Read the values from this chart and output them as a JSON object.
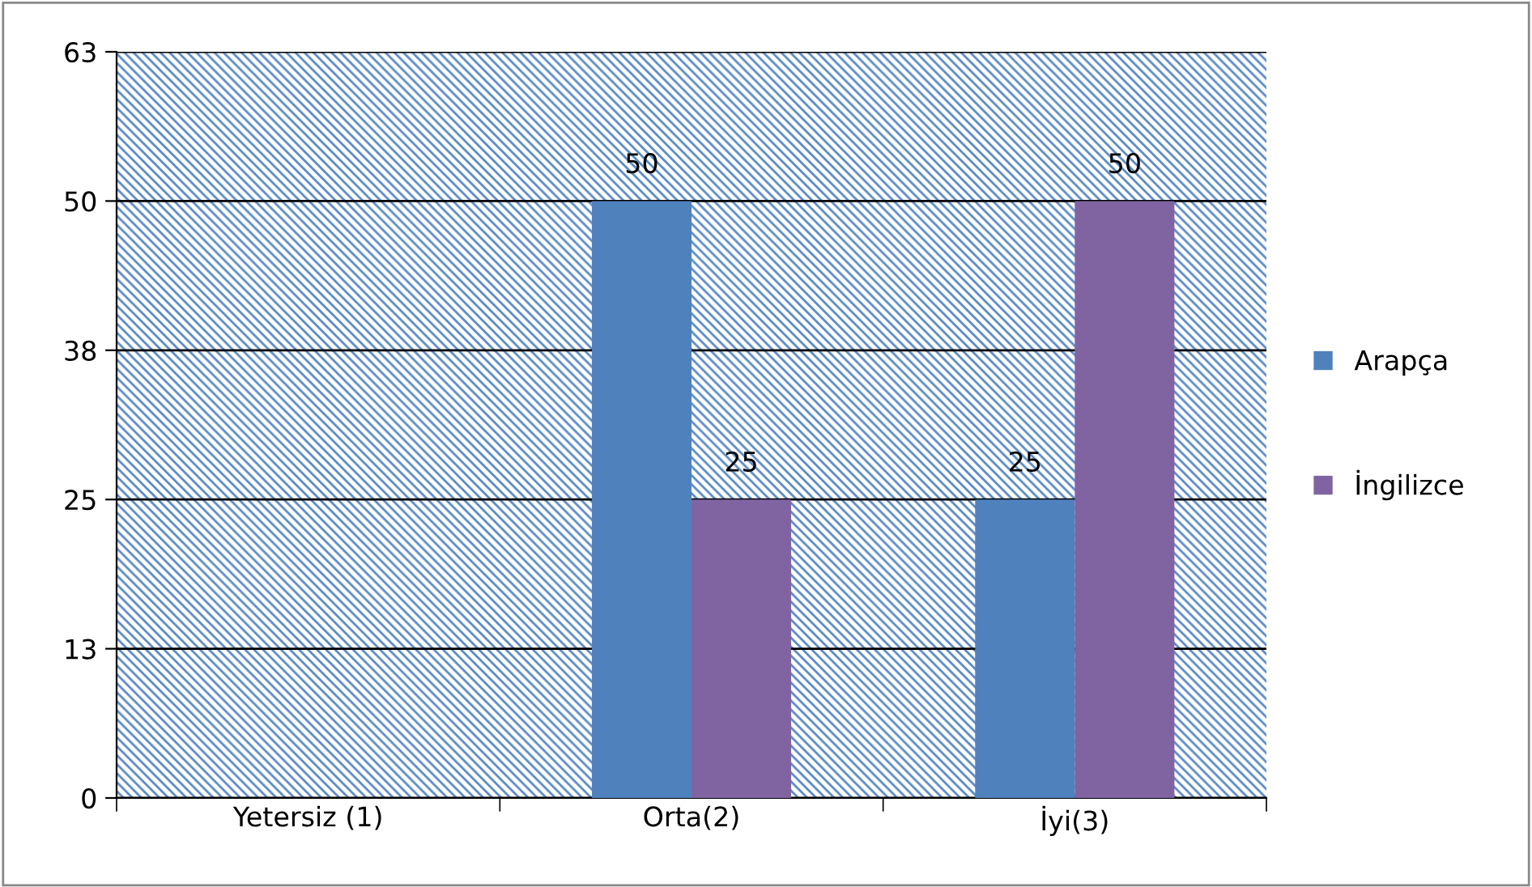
{
  "chart_data": {
    "type": "bar",
    "categories": [
      "Yetersiz (1)",
      "Orta(2)",
      "İyi(3)"
    ],
    "series": [
      {
        "name": "Arapça",
        "color": "#4f81bd",
        "values": [
          null,
          50,
          25
        ],
        "value_labels": [
          null,
          "50",
          "25"
        ]
      },
      {
        "name": "İngilizce",
        "color": "#8064a2",
        "values": [
          null,
          25,
          50
        ],
        "value_labels": [
          null,
          "25",
          "50"
        ]
      }
    ],
    "ylim": [
      0,
      62.5
    ],
    "yticks": [
      0,
      {
        "value": 12.5,
        "label": "13"
      },
      25,
      {
        "value": 37.5,
        "label": "38"
      },
      50,
      {
        "value": 62.5,
        "label": "63"
      }
    ],
    "grid": "y",
    "legend": "right"
  }
}
